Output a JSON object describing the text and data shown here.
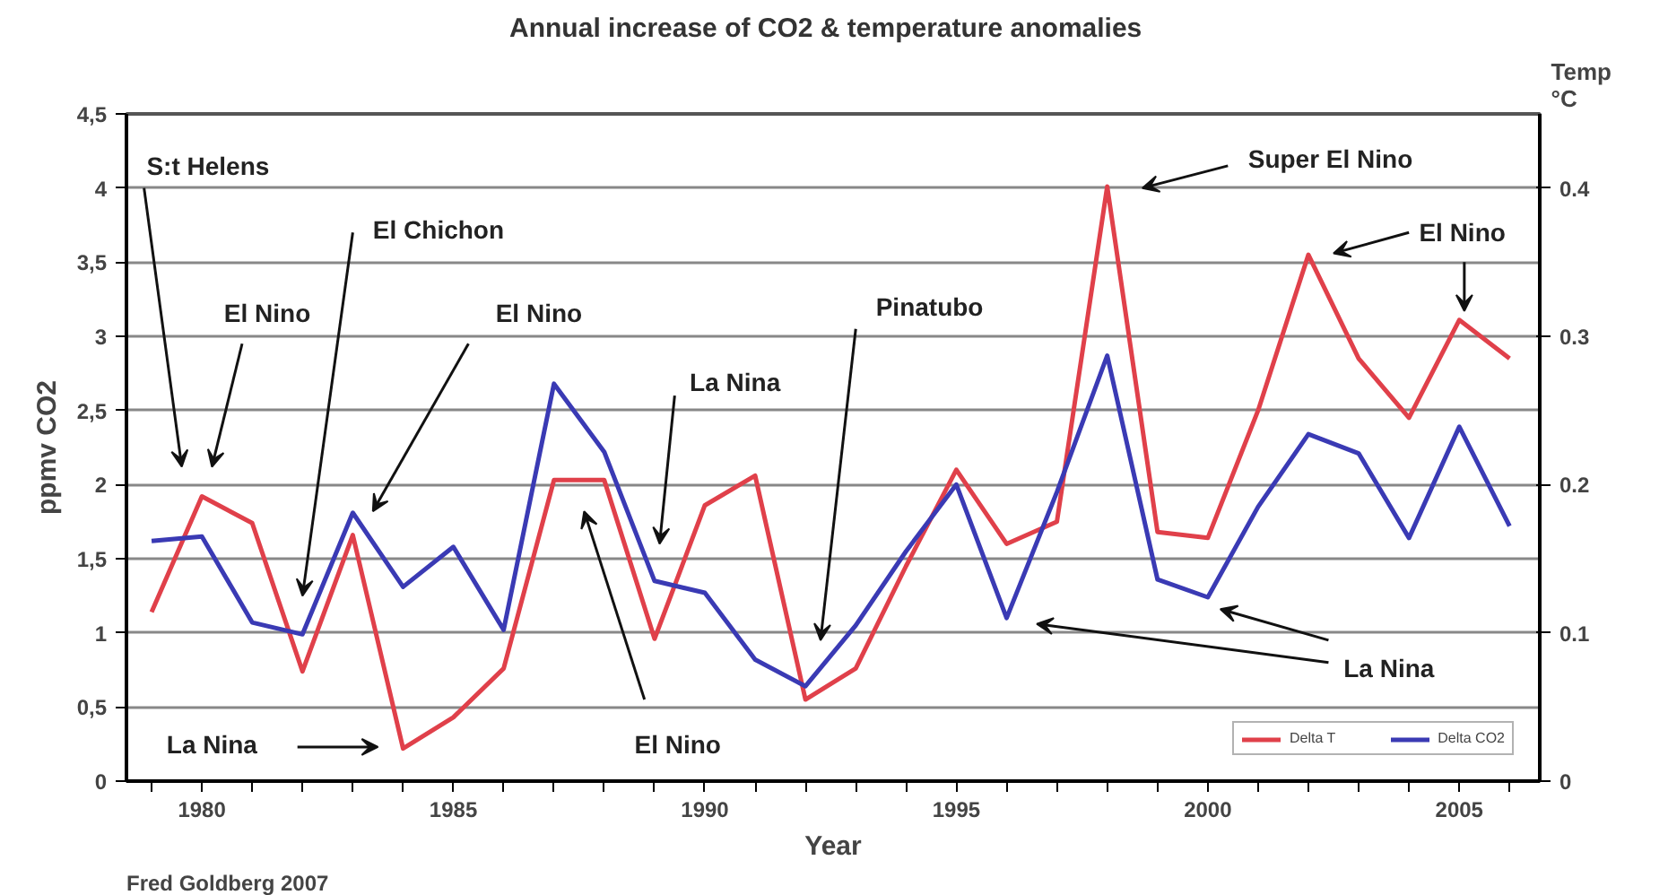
{
  "chart_data": {
    "type": "line",
    "title": "Annual increase of CO2  &  temperature anomalies",
    "xlabel": "Year",
    "ylabel": "ppmv CO2",
    "y2label": "Temp\n°C",
    "x": [
      1979,
      1980,
      1981,
      1982,
      1983,
      1984,
      1985,
      1986,
      1987,
      1988,
      1989,
      1990,
      1991,
      1992,
      1993,
      1994,
      1995,
      1996,
      1997,
      1998,
      1999,
      2000,
      2001,
      2002,
      2003,
      2004,
      2005,
      2006
    ],
    "series": [
      {
        "name": "Delta T",
        "color": "#e0404a",
        "axis": "y2",
        "values": [
          0.114,
          0.192,
          0.174,
          0.074,
          0.166,
          0.022,
          0.043,
          0.076,
          0.203,
          0.203,
          0.096,
          0.186,
          0.206,
          0.055,
          0.076,
          0.145,
          0.21,
          0.16,
          0.175,
          0.401,
          0.168,
          0.164,
          0.25,
          0.355,
          0.285,
          0.245,
          0.311,
          0.285
        ]
      },
      {
        "name": "Delta CO2",
        "color": "#3a3ab4",
        "values": [
          1.62,
          1.65,
          1.07,
          0.99,
          1.81,
          1.31,
          1.58,
          1.02,
          2.68,
          2.22,
          1.35,
          1.27,
          0.82,
          0.64,
          1.05,
          1.55,
          2.0,
          1.1,
          1.95,
          2.87,
          1.36,
          1.24,
          1.85,
          2.34,
          2.21,
          1.64,
          2.39,
          1.72
        ]
      }
    ],
    "xlim": [
      1978.5,
      2006.6
    ],
    "ylim": [
      0,
      4.5
    ],
    "y2lim": [
      0,
      0.45
    ],
    "xticks": [
      {
        "value": 1979,
        "label": null
      },
      1980,
      {
        "value": 1981,
        "label": null
      },
      {
        "value": 1982,
        "label": null
      },
      {
        "value": 1983,
        "label": null
      },
      {
        "value": 1984,
        "label": null
      },
      1985,
      {
        "value": 1986,
        "label": null
      },
      {
        "value": 1987,
        "label": null
      },
      {
        "value": 1988,
        "label": null
      },
      {
        "value": 1989,
        "label": null
      },
      1990,
      {
        "value": 1991,
        "label": null
      },
      {
        "value": 1992,
        "label": null
      },
      {
        "value": 1993,
        "label": null
      },
      {
        "value": 1994,
        "label": null
      },
      1995,
      {
        "value": 1996,
        "label": null
      },
      {
        "value": 1997,
        "label": null
      },
      {
        "value": 1998,
        "label": null
      },
      {
        "value": 1999,
        "label": null
      },
      2000,
      {
        "value": 2001,
        "label": null
      },
      {
        "value": 2002,
        "label": null
      },
      {
        "value": 2003,
        "label": null
      },
      {
        "value": 2004,
        "label": null
      },
      2005,
      {
        "value": 2006,
        "label": null
      }
    ],
    "yticks": [
      0,
      {
        "value": 0.5,
        "label": "0,5"
      },
      1,
      {
        "value": 1.5,
        "label": "1,5"
      },
      2,
      {
        "value": 2.5,
        "label": "2,5"
      },
      3,
      {
        "value": 3.5,
        "label": "3,5"
      },
      4,
      {
        "value": 4.5,
        "label": "4,5"
      }
    ],
    "y2ticks": [
      0,
      0.1,
      0.2,
      0.3,
      0.4
    ],
    "grid": "y",
    "legend": "bottom right",
    "marker": "none",
    "line_style": "solid",
    "annotations": [
      "S:t Helens",
      "El Nino",
      "El Chichon",
      "El Nino",
      "La Nina",
      "El Nino",
      "La Nina",
      "Pinatubo",
      "Super El Nino",
      "El Nino",
      "La Nina",
      "Fred Goldberg 2007"
    ]
  }
}
